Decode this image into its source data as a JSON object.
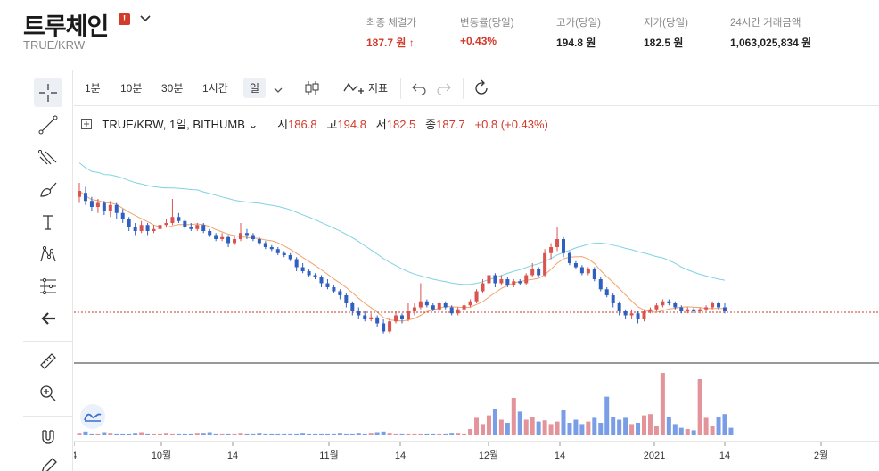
{
  "coin": {
    "name": "트루체인",
    "pair": "TRUE/KRW",
    "warning_badge": "!"
  },
  "stats": [
    {
      "label": "최종 체결가",
      "value": "187.7 원 ↑",
      "color": "red"
    },
    {
      "label": "변동률(당일)",
      "value": "+0.43%",
      "color": "red"
    },
    {
      "label": "고가(당일)",
      "value": "194.8 원",
      "color": "dark"
    },
    {
      "label": "저가(당일)",
      "value": "182.5 원",
      "color": "dark"
    },
    {
      "label": "24시간 거래금액",
      "value": "1,063,025,834 원",
      "color": "dark"
    }
  ],
  "toolbar": {
    "timeframes": [
      "1분",
      "10분",
      "30분",
      "1시간",
      "일"
    ],
    "active_timeframe": "일",
    "indicator_label": "지표"
  },
  "legend": {
    "symbol": "TRUE/KRW, 1일, BITHUMB",
    "open_label": "시",
    "open": "186.8",
    "high_label": "고",
    "high": "194.8",
    "low_label": "저",
    "low": "182.5",
    "close_label": "종",
    "close": "187.7",
    "change": "+0.8 (+0.43%)"
  },
  "x_axis_labels": [
    "4",
    "10월",
    "14",
    "11월",
    "14",
    "12월",
    "14",
    "2021",
    "14",
    "2월"
  ],
  "colors": {
    "up": "#d9534f",
    "down": "#2f5fbf",
    "ma_short": "#f0a36b",
    "ma_long": "#7fd2e0",
    "price_line": "#c0392b",
    "accent": "#d23a2a"
  },
  "chart_data": {
    "type": "candlestick",
    "candles": [
      [
        0.27,
        0.24,
        0.2,
        0.3,
        0
      ],
      [
        0.25,
        0.29,
        0.22,
        0.31,
        0
      ],
      [
        0.29,
        0.32,
        0.27,
        0.34,
        0
      ],
      [
        0.32,
        0.3,
        0.28,
        0.35,
        0
      ],
      [
        0.3,
        0.34,
        0.29,
        0.36,
        0
      ],
      [
        0.34,
        0.31,
        0.29,
        0.37,
        0
      ],
      [
        0.31,
        0.35,
        0.3,
        0.38,
        0
      ],
      [
        0.35,
        0.38,
        0.33,
        0.4,
        0
      ],
      [
        0.38,
        0.42,
        0.37,
        0.44,
        0
      ],
      [
        0.42,
        0.44,
        0.4,
        0.46,
        0
      ],
      [
        0.44,
        0.41,
        0.39,
        0.45,
        0
      ],
      [
        0.41,
        0.44,
        0.4,
        0.46,
        0
      ],
      [
        0.44,
        0.43,
        0.41,
        0.45,
        0
      ],
      [
        0.43,
        0.41,
        0.4,
        0.44,
        0
      ],
      [
        0.41,
        0.4,
        0.38,
        0.42,
        0
      ],
      [
        0.4,
        0.37,
        0.28,
        0.41,
        0
      ],
      [
        0.37,
        0.39,
        0.35,
        0.4,
        0
      ],
      [
        0.39,
        0.42,
        0.38,
        0.43,
        0
      ],
      [
        0.42,
        0.43,
        0.4,
        0.44,
        0
      ],
      [
        0.43,
        0.41,
        0.4,
        0.44,
        0
      ],
      [
        0.41,
        0.44,
        0.4,
        0.45,
        0
      ],
      [
        0.44,
        0.46,
        0.43,
        0.47,
        0
      ],
      [
        0.46,
        0.48,
        0.45,
        0.49,
        0
      ],
      [
        0.48,
        0.47,
        0.45,
        0.49,
        0
      ],
      [
        0.47,
        0.5,
        0.46,
        0.52,
        0
      ],
      [
        0.5,
        0.48,
        0.46,
        0.51,
        0
      ],
      [
        0.48,
        0.45,
        0.4,
        0.49,
        0
      ],
      [
        0.45,
        0.46,
        0.43,
        0.48,
        0
      ],
      [
        0.46,
        0.48,
        0.45,
        0.49,
        0
      ],
      [
        0.48,
        0.5,
        0.47,
        0.51,
        0
      ],
      [
        0.5,
        0.52,
        0.49,
        0.53,
        0
      ],
      [
        0.52,
        0.53,
        0.51,
        0.54,
        0
      ],
      [
        0.53,
        0.55,
        0.52,
        0.56,
        0
      ],
      [
        0.55,
        0.56,
        0.54,
        0.57,
        0
      ],
      [
        0.56,
        0.58,
        0.55,
        0.59,
        0
      ],
      [
        0.58,
        0.62,
        0.57,
        0.64,
        0
      ],
      [
        0.62,
        0.64,
        0.6,
        0.65,
        0
      ],
      [
        0.64,
        0.66,
        0.63,
        0.67,
        0
      ],
      [
        0.66,
        0.67,
        0.65,
        0.68,
        0
      ],
      [
        0.67,
        0.7,
        0.66,
        0.72,
        0
      ],
      [
        0.7,
        0.72,
        0.68,
        0.73,
        0
      ],
      [
        0.72,
        0.74,
        0.71,
        0.75,
        0
      ],
      [
        0.74,
        0.76,
        0.73,
        0.78,
        0
      ],
      [
        0.76,
        0.8,
        0.75,
        0.82,
        0
      ],
      [
        0.8,
        0.84,
        0.79,
        0.86,
        0
      ],
      [
        0.84,
        0.86,
        0.82,
        0.88,
        0
      ],
      [
        0.86,
        0.88,
        0.84,
        0.89,
        0
      ],
      [
        0.88,
        0.87,
        0.85,
        0.89,
        0
      ],
      [
        0.87,
        0.9,
        0.86,
        0.92,
        0
      ],
      [
        0.9,
        0.94,
        0.88,
        0.95,
        0
      ],
      [
        0.94,
        0.89,
        0.87,
        0.95,
        1
      ],
      [
        0.89,
        0.86,
        0.84,
        0.9,
        1
      ],
      [
        0.86,
        0.88,
        0.85,
        0.9,
        0
      ],
      [
        0.88,
        0.84,
        0.8,
        0.89,
        1
      ],
      [
        0.84,
        0.82,
        0.8,
        0.86,
        1
      ],
      [
        0.82,
        0.79,
        0.7,
        0.83,
        1
      ],
      [
        0.79,
        0.81,
        0.78,
        0.82,
        0
      ],
      [
        0.81,
        0.83,
        0.8,
        0.84,
        0
      ],
      [
        0.83,
        0.8,
        0.79,
        0.84,
        1
      ],
      [
        0.8,
        0.82,
        0.79,
        0.83,
        0
      ],
      [
        0.82,
        0.85,
        0.81,
        0.86,
        0
      ],
      [
        0.85,
        0.83,
        0.82,
        0.86,
        1
      ],
      [
        0.83,
        0.81,
        0.8,
        0.84,
        1
      ],
      [
        0.81,
        0.79,
        0.78,
        0.82,
        1
      ],
      [
        0.79,
        0.74,
        0.73,
        0.8,
        1
      ],
      [
        0.74,
        0.7,
        0.68,
        0.75,
        1
      ],
      [
        0.7,
        0.66,
        0.64,
        0.72,
        1
      ],
      [
        0.66,
        0.7,
        0.65,
        0.72,
        0
      ],
      [
        0.7,
        0.68,
        0.66,
        0.71,
        1
      ],
      [
        0.68,
        0.71,
        0.67,
        0.72,
        0
      ],
      [
        0.71,
        0.69,
        0.68,
        0.72,
        1
      ],
      [
        0.69,
        0.7,
        0.68,
        0.71,
        0
      ],
      [
        0.7,
        0.66,
        0.65,
        0.71,
        1
      ],
      [
        0.66,
        0.63,
        0.6,
        0.67,
        1
      ],
      [
        0.63,
        0.66,
        0.62,
        0.67,
        0
      ],
      [
        0.66,
        0.55,
        0.53,
        0.67,
        1
      ],
      [
        0.55,
        0.52,
        0.5,
        0.58,
        1
      ],
      [
        0.52,
        0.48,
        0.42,
        0.54,
        1
      ],
      [
        0.48,
        0.55,
        0.47,
        0.57,
        0
      ],
      [
        0.55,
        0.6,
        0.54,
        0.61,
        0
      ],
      [
        0.6,
        0.62,
        0.59,
        0.63,
        0
      ],
      [
        0.62,
        0.65,
        0.61,
        0.66,
        0
      ],
      [
        0.65,
        0.63,
        0.62,
        0.66,
        1
      ],
      [
        0.63,
        0.68,
        0.62,
        0.69,
        0
      ],
      [
        0.68,
        0.73,
        0.67,
        0.74,
        0
      ],
      [
        0.73,
        0.76,
        0.72,
        0.77,
        0
      ],
      [
        0.76,
        0.8,
        0.75,
        0.82,
        0
      ],
      [
        0.8,
        0.84,
        0.79,
        0.86,
        0
      ],
      [
        0.84,
        0.86,
        0.83,
        0.88,
        0
      ],
      [
        0.86,
        0.85,
        0.83,
        0.88,
        0
      ],
      [
        0.85,
        0.88,
        0.84,
        0.9,
        0
      ],
      [
        0.88,
        0.84,
        0.83,
        0.89,
        1
      ],
      [
        0.84,
        0.83,
        0.82,
        0.85,
        0
      ],
      [
        0.83,
        0.81,
        0.8,
        0.84,
        1
      ],
      [
        0.81,
        0.79,
        0.78,
        0.82,
        1
      ],
      [
        0.79,
        0.8,
        0.78,
        0.81,
        0
      ],
      [
        0.8,
        0.82,
        0.79,
        0.83,
        0
      ],
      [
        0.82,
        0.84,
        0.81,
        0.85,
        0
      ],
      [
        0.84,
        0.83,
        0.82,
        0.85,
        1
      ],
      [
        0.83,
        0.84,
        0.82,
        0.85,
        0
      ],
      [
        0.84,
        0.83,
        0.82,
        0.85,
        1
      ],
      [
        0.83,
        0.82,
        0.81,
        0.84,
        1
      ],
      [
        0.82,
        0.8,
        0.79,
        0.83,
        1
      ],
      [
        0.8,
        0.82,
        0.79,
        0.83,
        0
      ],
      [
        0.82,
        0.84,
        0.8,
        0.85,
        0
      ]
    ]
  },
  "price_line_value": "187.7",
  "volumes": [
    0.04,
    0.06,
    0.03,
    0.03,
    0.05,
    0.04,
    0.03,
    0.03,
    0.03,
    0.04,
    0.05,
    0.03,
    0.03,
    0.03,
    0.04,
    0.03,
    0.03,
    0.03,
    0.03,
    0.04,
    0.04,
    0.05,
    0.03,
    0.03,
    0.03,
    0.03,
    0.04,
    0.03,
    0.03,
    0.04,
    0.03,
    0.03,
    0.03,
    0.03,
    0.03,
    0.03,
    0.04,
    0.03,
    0.03,
    0.03,
    0.03,
    0.03,
    0.04,
    0.03,
    0.03,
    0.04,
    0.03,
    0.04,
    0.05,
    0.06,
    0.04,
    0.03,
    0.03,
    0.03,
    0.03,
    0.03,
    0.03,
    0.03,
    0.03,
    0.03,
    0.04,
    0.04,
    0.03,
    0.1,
    0.28,
    0.18,
    0.32,
    0.42,
    0.25,
    0.2,
    0.6,
    0.38,
    0.25,
    0.3,
    0.22,
    0.24,
    0.18,
    0.22,
    0.4,
    0.2,
    0.25,
    0.18,
    0.22,
    0.28,
    0.2,
    0.62,
    0.3,
    0.25,
    0.28,
    0.18,
    0.2,
    0.32,
    0.34,
    0.15,
    1.0,
    0.3,
    0.18,
    0.12,
    0.1,
    0.08,
    0.9,
    0.28,
    0.15,
    0.3,
    0.34,
    0.12
  ]
}
